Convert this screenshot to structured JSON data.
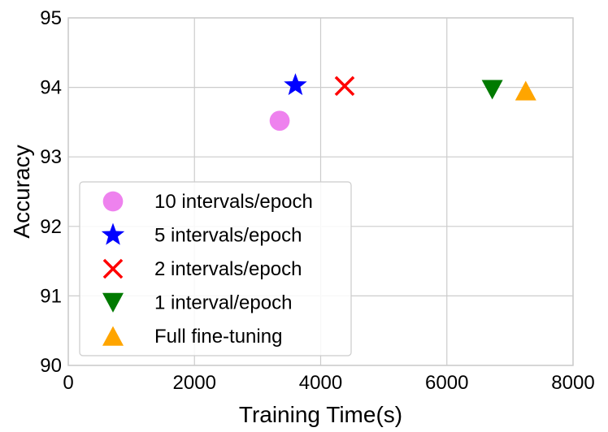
{
  "chart_data": {
    "type": "scatter",
    "title": "",
    "xlabel": "Training Time(s)",
    "ylabel": "Accuracy",
    "xlim": [
      0,
      8000
    ],
    "ylim": [
      90,
      95
    ],
    "xticks": [
      0,
      2000,
      4000,
      6000,
      8000
    ],
    "yticks": [
      90,
      91,
      92,
      93,
      94,
      95
    ],
    "xtick_labels": [
      "0",
      "2000",
      "4000",
      "6000",
      "8000"
    ],
    "ytick_labels": [
      "90",
      "91",
      "92",
      "93",
      "94",
      "95"
    ],
    "grid": true,
    "legend_position": "lower-left",
    "series": [
      {
        "name": "10 intervals/epoch",
        "marker": "circle",
        "color": "#ee82ee",
        "points": [
          {
            "x": 3350,
            "y": 93.52
          }
        ]
      },
      {
        "name": "5 intervals/epoch",
        "marker": "star",
        "color": "#0000ff",
        "points": [
          {
            "x": 3600,
            "y": 94.03
          }
        ]
      },
      {
        "name": "2 intervals/epoch",
        "marker": "x",
        "color": "#ff0000",
        "points": [
          {
            "x": 4380,
            "y": 94.02
          }
        ]
      },
      {
        "name": "1 interval/epoch",
        "marker": "triangle-down",
        "color": "#007a00",
        "points": [
          {
            "x": 6720,
            "y": 93.97
          }
        ]
      },
      {
        "name": "Full fine-tuning",
        "marker": "triangle-up",
        "color": "#ffa500",
        "points": [
          {
            "x": 7250,
            "y": 93.95
          }
        ]
      }
    ]
  }
}
